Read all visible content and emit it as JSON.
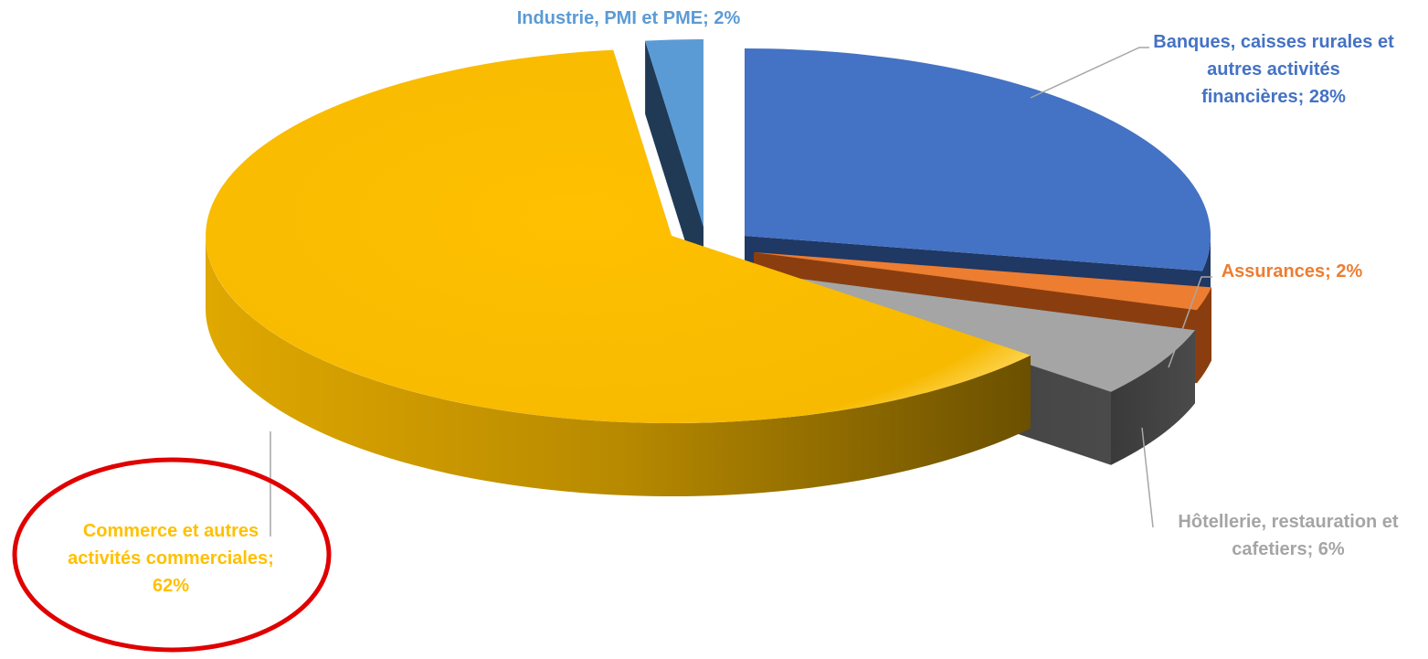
{
  "chart_data": {
    "type": "pie",
    "variant": "3d-exploded",
    "title": "",
    "legend": "none",
    "slices": [
      {
        "label": "Banques, caisses rurales et autres activités financières",
        "value": 28,
        "percent_label": "28%",
        "color": "#4472C4",
        "label_lines": [
          "Banques, caisses rurales et",
          "autres activités",
          "financières; 28%"
        ]
      },
      {
        "label": "Assurances",
        "value": 2,
        "percent_label": "2%",
        "color": "#ED7D31",
        "label_lines": [
          "Assurances; 2%"
        ]
      },
      {
        "label": "Hôtellerie, restauration et cafetiers",
        "value": 6,
        "percent_label": "6%",
        "color": "#A5A5A5",
        "label_lines": [
          "Hôtellerie, restauration et",
          "cafetiers; 6%"
        ]
      },
      {
        "label": "Commerce et autres activités commerciales",
        "value": 62,
        "percent_label": "62%",
        "color": "#FFC000",
        "label_lines": [
          "Commerce et autres",
          "activités commerciales;",
          "62%"
        ]
      },
      {
        "label": "Industrie, PMI et PME",
        "value": 2,
        "percent_label": "2%",
        "color": "#5B9BD5",
        "label_lines": [
          "Industrie, PMI et PME; 2%"
        ]
      }
    ],
    "highlight": {
      "slice": "Commerce et autres activités commerciales",
      "color": "#E00000"
    }
  }
}
